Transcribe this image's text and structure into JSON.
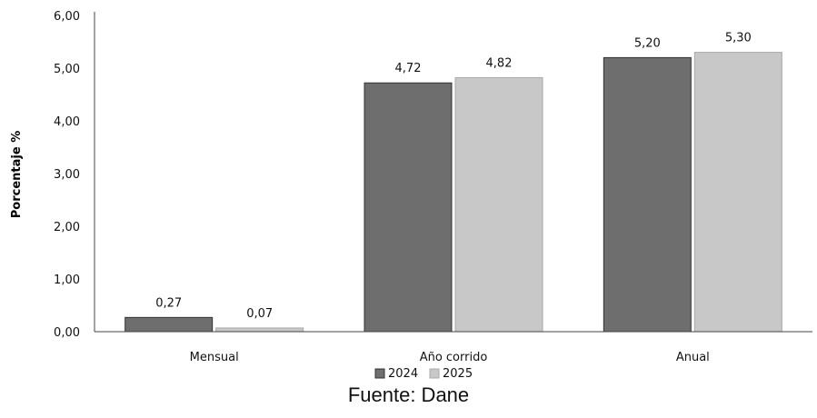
{
  "source": "Fuente: Dane",
  "chart_data": {
    "type": "bar",
    "title": "",
    "xlabel": "",
    "ylabel": "Porcentaje %",
    "ylim": [
      0,
      6
    ],
    "yticks": [
      "0,00",
      "1,00",
      "2,00",
      "3,00",
      "4,00",
      "5,00",
      "6,00"
    ],
    "categories": [
      "Mensual",
      "Año corrido",
      "Anual"
    ],
    "series": [
      {
        "name": "2024",
        "values": [
          0.27,
          4.72,
          5.2
        ],
        "labels": [
          "0,27",
          "4,72",
          "5,20"
        ],
        "color": "#6e6e6e"
      },
      {
        "name": "2025",
        "values": [
          0.07,
          4.82,
          5.3
        ],
        "labels": [
          "0,07",
          "4,82",
          "5,30"
        ],
        "color": "#c8c8c8"
      }
    ],
    "grid": false,
    "legend_position": "bottom"
  }
}
